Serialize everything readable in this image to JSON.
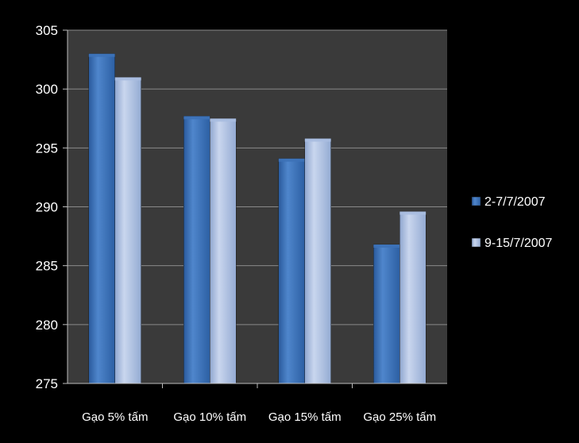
{
  "colors": {
    "outer_background": "#000000",
    "plot_background": "#3a3a3a",
    "gridline": "#8a8a8a",
    "text": "#ffffff",
    "series_1": "#3d72b8",
    "series_2": "#a8bde0"
  },
  "chart_data": {
    "type": "bar",
    "title": "",
    "xlabel": "",
    "ylabel": "",
    "categories": [
      "Gạo 5% tấm",
      "Gạo 10% tấm",
      "Gạo 15% tấm",
      "Gạo 25% tấm"
    ],
    "series": [
      {
        "name": "2-7/7/2007",
        "values": [
          303,
          297.7,
          294.1,
          286.8
        ]
      },
      {
        "name": "9-15/7/2007",
        "values": [
          301,
          297.5,
          295.8,
          289.6
        ]
      }
    ],
    "ylim": [
      275,
      305
    ],
    "yticks": [
      275,
      280,
      285,
      290,
      295,
      300,
      305
    ],
    "grid": true,
    "legend_position": "right"
  }
}
